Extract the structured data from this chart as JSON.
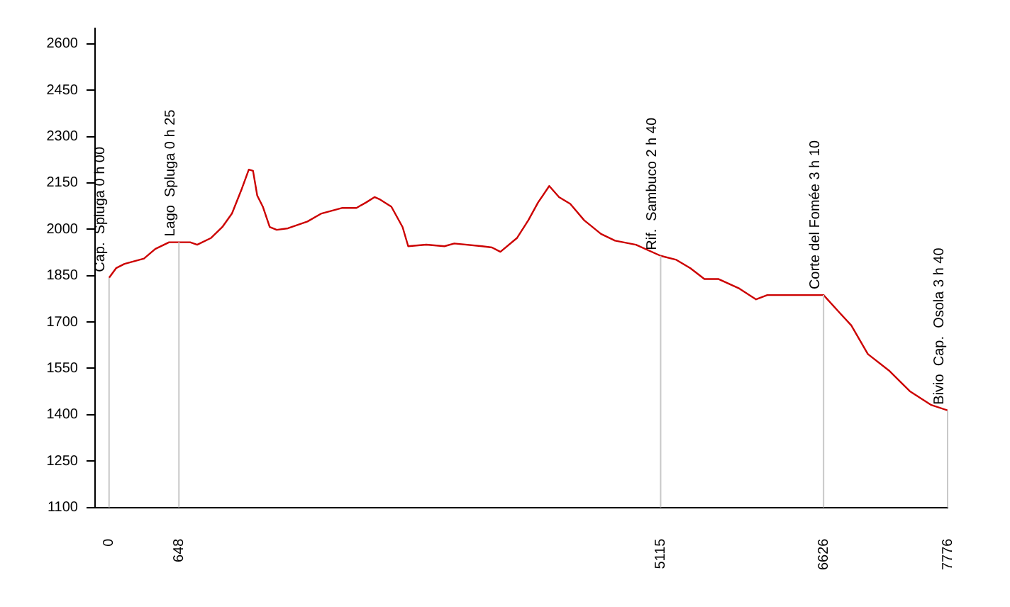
{
  "chart_data": {
    "type": "line",
    "xlim": [
      -130,
      7776
    ],
    "xticks": [
      0,
      648,
      5115,
      6626,
      7776
    ],
    "ylim": [
      1100,
      2650
    ],
    "yticks": [
      1100,
      1250,
      1400,
      1550,
      1700,
      1850,
      2000,
      2150,
      2300,
      2450,
      2600
    ],
    "grid": false,
    "legend": false,
    "marker": "none",
    "line_style": "solid",
    "series": [
      {
        "color": "#cc0000",
        "x": [
          0,
          65,
          143,
          324,
          428,
          557,
          648,
          752,
          817,
          947,
          1050,
          1140,
          1231,
          1296,
          1335,
          1374,
          1426,
          1490,
          1555,
          1659,
          1840,
          1970,
          2164,
          2294,
          2385,
          2462,
          2514,
          2618,
          2722,
          2774,
          2942,
          3110,
          3201,
          3460,
          3551,
          3629,
          3784,
          3888,
          3979,
          4082,
          4173,
          4277,
          4406,
          4562,
          4692,
          4886,
          5115,
          5261,
          5391,
          5521,
          5650,
          5650,
          5845,
          6000,
          6104,
          6208,
          6363,
          6626,
          6779,
          6883,
          7037,
          7232,
          7426,
          7620,
          7776
        ],
        "values": [
          1843,
          1874,
          1888,
          1905,
          1936,
          1958,
          1958,
          1958,
          1950,
          1972,
          2007,
          2051,
          2131,
          2193,
          2189,
          2109,
          2073,
          2007,
          1998,
          2003,
          2025,
          2051,
          2069,
          2069,
          2087,
          2104,
          2096,
          2073,
          2007,
          1945,
          1950,
          1945,
          1954,
          1945,
          1941,
          1927,
          1972,
          2029,
          2087,
          2140,
          2104,
          2082,
          2029,
          1985,
          1963,
          1950,
          1914,
          1901,
          1874,
          1839,
          1839,
          1839,
          1808,
          1773,
          1787,
          1787,
          1787,
          1787,
          1728,
          1689,
          1596,
          1543,
          1476,
          1432,
          1414
        ]
      }
    ],
    "ref_lines": [
      {
        "axis": "x",
        "value": 0,
        "label": "Cap.  Spluga 0 h 00",
        "color": "#c8c8c8"
      },
      {
        "axis": "x",
        "value": 648,
        "label": "Lago  Spluga 0 h 25",
        "color": "#c8c8c8"
      },
      {
        "axis": "x",
        "value": 5115,
        "label": "Rif.  Sambuco 2 h 40",
        "color": "#c8c8c8"
      },
      {
        "axis": "x",
        "value": 6626,
        "label": "Corte del Fomée 3 h 10",
        "color": "#c8c8c8"
      },
      {
        "axis": "x",
        "value": 7776,
        "label": "Bivio  Cap.  Osola 3 h 40",
        "color": "#c8c8c8"
      }
    ]
  }
}
